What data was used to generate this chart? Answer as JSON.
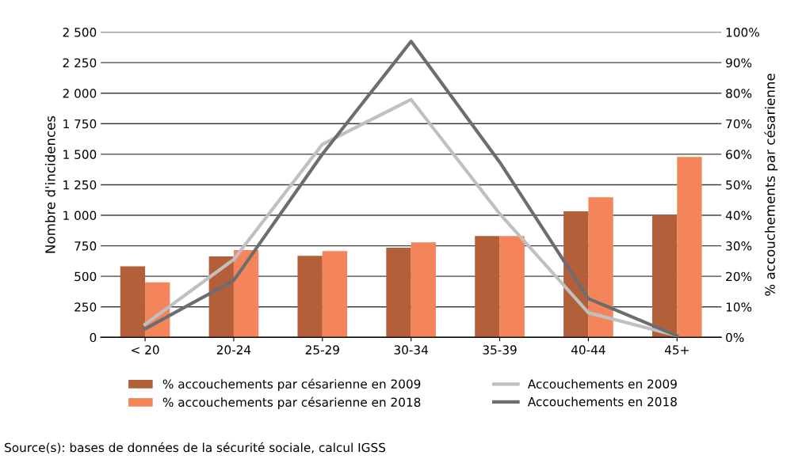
{
  "chart_data": {
    "type": "bar",
    "ylabel": "Nombre d'incidences",
    "y2label": "% accouchements par césarienne",
    "categories": [
      "< 20",
      "20-24",
      "25-29",
      "30-34",
      "35-39",
      "40-44",
      "45+"
    ],
    "series": [
      {
        "name": "% accouchements par césarienne en 2009",
        "color": "#b35f3a",
        "axis": "y2",
        "values": [
          23.3,
          26.5,
          26.7,
          29.4,
          33.2,
          41.3,
          40.1
        ]
      },
      {
        "name": "% accouchements par césarienne en 2018",
        "color": "#f4845a",
        "axis": "y2",
        "values": [
          18.0,
          28.6,
          28.3,
          31.1,
          33.2,
          45.9,
          59.1
        ]
      },
      {
        "name": "Accouchements en 2009",
        "type": "line",
        "color": "#c0c0c0",
        "values": [
          106,
          638,
          1581,
          1948,
          1012,
          202,
          13
        ]
      },
      {
        "name": "Accouchements en 2018",
        "type": "line",
        "color": "#6d6d6f",
        "values": [
          69,
          466,
          1501,
          2424,
          1435,
          317,
          13
        ]
      }
    ],
    "ylim": [
      0,
      2500
    ],
    "yticks": [
      0,
      250,
      500,
      750,
      {
        "value": 1000,
        "label": "1 000"
      },
      {
        "value": 1250,
        "label": "1 250"
      },
      {
        "value": 1500,
        "label": "1 500"
      },
      {
        "value": 1750,
        "label": "1 750"
      },
      {
        "value": 2000,
        "label": "2 000"
      },
      {
        "value": 2250,
        "label": "2 250"
      },
      {
        "value": 2500,
        "label": "2 500"
      }
    ],
    "y2lim": [
      0,
      100
    ],
    "y2ticks": [
      {
        "value": 0,
        "label": "0%"
      },
      {
        "value": 10,
        "label": "10%"
      },
      {
        "value": 20,
        "label": "20%"
      },
      {
        "value": 30,
        "label": "30%"
      },
      {
        "value": 40,
        "label": "40%"
      },
      {
        "value": 50,
        "label": "50%"
      },
      {
        "value": 60,
        "label": "60%"
      },
      {
        "value": 70,
        "label": "70%"
      },
      {
        "value": 80,
        "label": "80%"
      },
      {
        "value": 90,
        "label": "90%"
      },
      {
        "value": 100,
        "label": "100%"
      }
    ],
    "grid": "y",
    "legend": "bottom",
    "marker": "none",
    "line_style": "solid",
    "annotations": [
      "Source(s): bases de données de la sécurité sociale, calcul IGSS"
    ]
  }
}
